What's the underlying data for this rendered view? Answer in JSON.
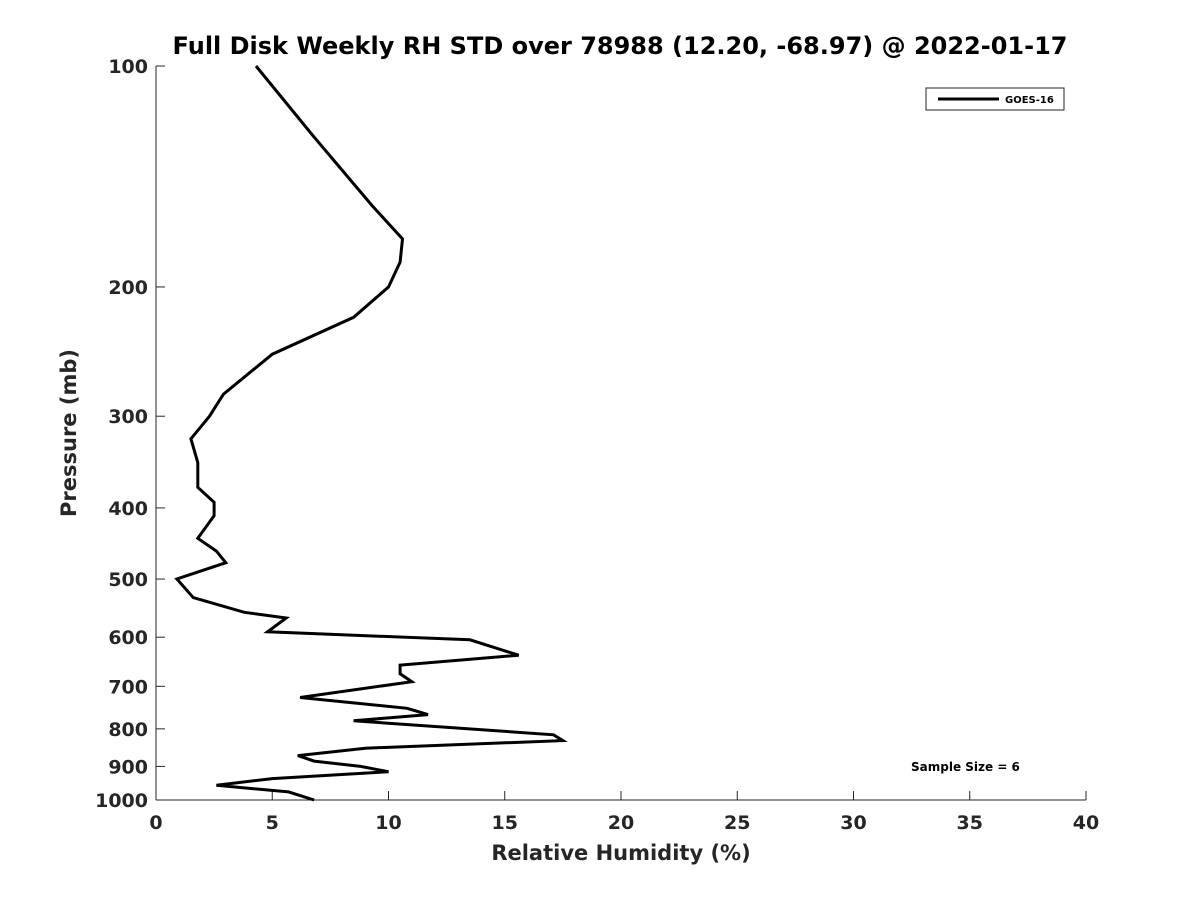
{
  "chart_data": {
    "type": "line",
    "title": "Full Disk Weekly RH STD over 78988 (12.20, -68.97) @ 2022-01-17",
    "xlabel": "Relative Humidity (%)",
    "ylabel": "Pressure (mb)",
    "xlim": [
      0,
      40
    ],
    "ylim": [
      100,
      1000
    ],
    "y_scale": "log",
    "y_reversed": true,
    "grid": false,
    "legend_position": "top-right",
    "x_ticks": [
      "0",
      "5",
      "10",
      "15",
      "20",
      "25",
      "30",
      "35",
      "40"
    ],
    "y_ticks": [
      "100",
      "200",
      "300",
      "400",
      "500",
      "600",
      "700",
      "800",
      "900",
      "1000"
    ],
    "series": [
      {
        "name": "GOES-16",
        "color": "#000000",
        "points": [
          [
            4.3,
            100
          ],
          [
            6.8,
            125
          ],
          [
            9.3,
            155
          ],
          [
            10.6,
            172
          ],
          [
            10.5,
            185
          ],
          [
            10.0,
            200
          ],
          [
            8.5,
            220
          ],
          [
            5.0,
            247
          ],
          [
            2.9,
            280
          ],
          [
            2.3,
            300
          ],
          [
            1.5,
            322
          ],
          [
            1.8,
            347
          ],
          [
            1.8,
            375
          ],
          [
            2.5,
            393
          ],
          [
            2.5,
            410
          ],
          [
            1.8,
            440
          ],
          [
            2.6,
            458
          ],
          [
            3.0,
            475
          ],
          [
            0.9,
            500
          ],
          [
            1.6,
            530
          ],
          [
            3.8,
            555
          ],
          [
            5.6,
            565
          ],
          [
            4.8,
            590
          ],
          [
            13.5,
            605
          ],
          [
            15.6,
            635
          ],
          [
            10.5,
            655
          ],
          [
            10.5,
            673
          ],
          [
            11.0,
            690
          ],
          [
            6.2,
            725
          ],
          [
            10.8,
            750
          ],
          [
            11.7,
            765
          ],
          [
            8.5,
            780
          ],
          [
            17.1,
            815
          ],
          [
            17.5,
            830
          ],
          [
            9.0,
            850
          ],
          [
            6.1,
            870
          ],
          [
            6.8,
            885
          ],
          [
            8.8,
            900
          ],
          [
            10.0,
            915
          ],
          [
            5.0,
            935
          ],
          [
            2.6,
            955
          ],
          [
            5.7,
            975
          ],
          [
            6.8,
            1000
          ]
        ]
      }
    ],
    "annotations": [
      {
        "text": "Sample Size = 6"
      }
    ]
  }
}
